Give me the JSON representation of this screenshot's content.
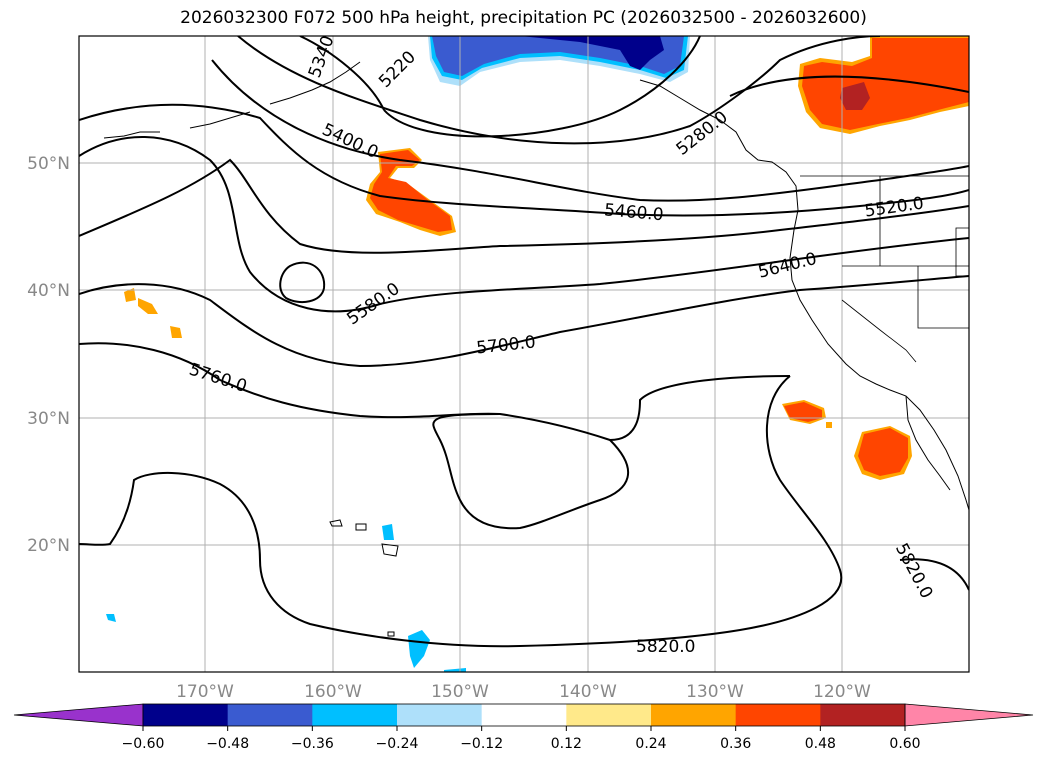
{
  "title": "2026032300 F072 500 hPa height, precipitation PC (2026032500 - 2026032600)",
  "map": {
    "lat_labels": [
      "50°N",
      "40°N",
      "30°N",
      "20°N"
    ],
    "lon_labels": [
      "170°W",
      "160°W",
      "150°W",
      "140°W",
      "130°W",
      "120°W"
    ],
    "lon_range": [
      -180,
      -110
    ],
    "lat_range": [
      10,
      60
    ]
  },
  "contours": {
    "labels": [
      "5340",
      "5220",
      "5280.0",
      "5400.0",
      "5460.0",
      "5520.0",
      "5580.0",
      "5640.0",
      "5700.0",
      "5760.0",
      "5820.0",
      "5820.0"
    ]
  },
  "colorbar": {
    "ticks": [
      "−0.60",
      "−0.48",
      "−0.36",
      "−0.24",
      "−0.12",
      "0.12",
      "0.24",
      "0.36",
      "0.48",
      "0.60"
    ],
    "colors": [
      "#9932cc",
      "#00008b",
      "#3a5bd0",
      "#00bfff",
      "#aee0fa",
      "#ffffff",
      "#ffe98a",
      "#ffa500",
      "#ff4500",
      "#b22222",
      "#ff85a8"
    ],
    "positive_colors": {
      "light": "#ffe98a",
      "mid": "#ffa500",
      "strong": "#ff4500",
      "max": "#b22222"
    },
    "negative_colors": {
      "light": "#aee0fa",
      "mid": "#00bfff",
      "strong": "#3a5bd0",
      "max": "#00008b"
    }
  }
}
